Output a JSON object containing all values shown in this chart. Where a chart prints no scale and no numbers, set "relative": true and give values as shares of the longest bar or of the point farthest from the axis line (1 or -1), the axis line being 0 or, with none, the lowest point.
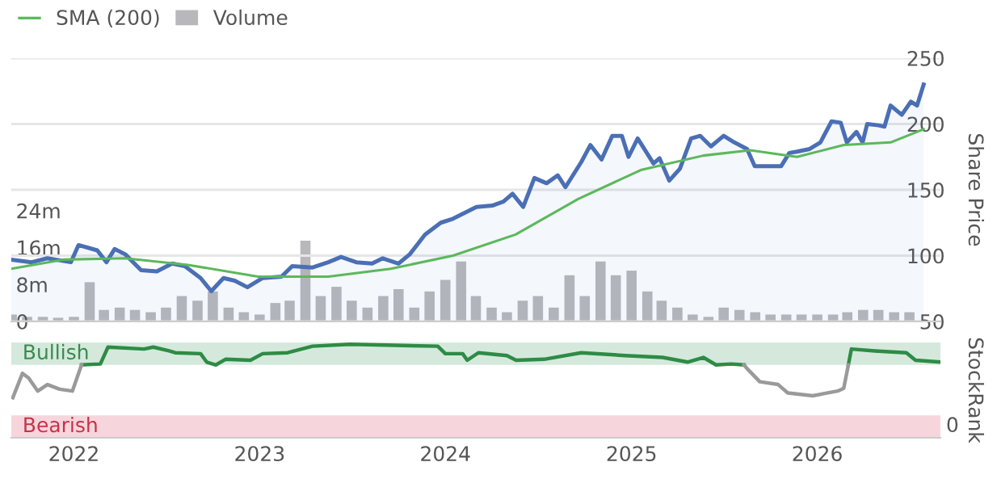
{
  "chart_data": [
    {
      "type": "line",
      "xlim": [
        "2021-08-31",
        "2026-08-31"
      ],
      "tick_labels": "y",
      "ylim": [
        50,
        250
      ],
      "yticks": [
        50,
        100,
        150,
        200,
        250
      ],
      "ylabel": "Share Price",
      "y2lim": [
        0,
        57
      ],
      "y2ticks": [
        0,
        {
          "value": 8,
          "label": "8m"
        },
        {
          "value": 16,
          "label": "16m"
        },
        {
          "value": 24,
          "label": "24m"
        }
      ],
      "grid": "y",
      "legend": "top left",
      "series": [
        {
          "type": "area",
          "color": "#4a6fb5",
          "x": [
            "2021-08-31",
            "2021-10-10",
            "2021-11-10",
            "2021-12-26",
            "2022-01-10",
            "2022-02-16",
            "2022-03-06",
            "2022-03-22",
            "2022-04-12",
            "2022-05-13",
            "2022-06-13",
            "2022-07-13",
            "2022-08-07",
            "2022-09-07",
            "2022-09-28",
            "2022-10-22",
            "2022-11-13",
            "2022-12-08",
            "2023-01-07",
            "2023-02-13",
            "2023-03-06",
            "2023-04-15",
            "2023-05-16",
            "2023-06-10",
            "2023-07-10",
            "2023-08-10",
            "2023-08-31",
            "2023-10-01",
            "2023-10-23",
            "2023-11-22",
            "2023-12-23",
            "2024-01-16",
            "2024-02-16",
            "2024-03-02",
            "2024-04-02",
            "2024-04-24",
            "2024-05-12",
            "2024-06-02",
            "2024-06-24",
            "2024-07-18",
            "2024-08-09",
            "2024-08-24",
            "2024-09-24",
            "2024-10-12",
            "2024-11-03",
            "2024-11-24",
            "2024-12-13",
            "2024-12-26",
            "2025-01-13",
            "2025-02-13",
            "2025-02-25",
            "2025-03-16",
            "2025-04-06",
            "2025-04-28",
            "2025-05-16",
            "2025-06-06",
            "2025-07-01",
            "2025-07-22",
            "2025-08-16",
            "2025-08-31",
            "2025-09-28",
            "2025-10-22",
            "2025-11-07",
            "2025-11-22",
            "2025-12-17",
            "2026-01-07",
            "2026-01-29",
            "2026-02-16",
            "2026-02-28",
            "2026-03-19",
            "2026-03-31",
            "2026-04-09",
            "2026-05-01",
            "2026-05-13",
            "2026-05-25",
            "2026-06-16",
            "2026-07-04",
            "2026-07-16",
            "2026-07-29"
          ],
          "values": [
            97,
            95,
            98,
            95,
            108,
            104,
            95,
            105,
            101,
            89,
            88,
            94,
            92,
            83,
            73,
            83,
            81,
            76,
            83,
            84,
            92,
            91,
            95,
            99,
            95,
            94,
            98,
            94,
            101,
            116,
            125,
            128,
            134,
            137,
            138,
            141,
            147,
            137,
            159,
            155,
            161,
            152,
            171,
            184,
            173,
            191,
            191,
            175,
            189,
            170,
            174,
            157,
            166,
            189,
            191,
            183,
            191,
            186,
            181,
            168,
            168,
            168,
            178,
            179,
            181,
            186,
            202,
            201,
            186,
            194,
            186,
            200,
            199,
            198,
            214,
            207,
            217,
            214,
            230
          ]
        },
        {
          "name": "SMA (200)",
          "type": "line",
          "color": "#5cb85c",
          "x": [
            "2021-08-31",
            "2021-12-11",
            "2022-04-12",
            "2022-08-13",
            "2022-12-29",
            "2023-05-16",
            "2023-09-16",
            "2024-01-16",
            "2024-05-18",
            "2024-09-18",
            "2025-01-19",
            "2025-05-22",
            "2025-08-22",
            "2025-11-22",
            "2026-02-22",
            "2026-05-25",
            "2026-07-29"
          ],
          "values": [
            90,
            97,
            98,
            93,
            84,
            84,
            90,
            100,
            116,
            143,
            165,
            176,
            180,
            175,
            184,
            186,
            196
          ]
        },
        {
          "name": "Volume",
          "type": "bar",
          "axis": "y2",
          "color": "#b8b8bc",
          "x": [
            "2021-09",
            "2021-10",
            "2021-11",
            "2021-12",
            "2022-01",
            "2022-02",
            "2022-03",
            "2022-04",
            "2022-05",
            "2022-06",
            "2022-07",
            "2022-08",
            "2022-09",
            "2022-10",
            "2022-11",
            "2022-12",
            "2023-01",
            "2023-02",
            "2023-03",
            "2023-04",
            "2023-05",
            "2023-06",
            "2023-07",
            "2023-08",
            "2023-09",
            "2023-10",
            "2023-11",
            "2023-12",
            "2024-01",
            "2024-02",
            "2024-03",
            "2024-04",
            "2024-05",
            "2024-06",
            "2024-07",
            "2024-08",
            "2024-09",
            "2024-10",
            "2024-11",
            "2024-12",
            "2025-01",
            "2025-02",
            "2025-03",
            "2025-04",
            "2025-05",
            "2025-06",
            "2025-07",
            "2025-08",
            "2025-09",
            "2025-10",
            "2025-11",
            "2025-12",
            "2026-01",
            "2026-02",
            "2026-03",
            "2026-04",
            "2026-05",
            "2026-06",
            "2026-07"
          ],
          "values": [
            1.5,
            1,
            1,
            0.8,
            1,
            8.5,
            2.5,
            3,
            2.5,
            2,
            3,
            5.5,
            4.5,
            6.5,
            3,
            2,
            1.5,
            4,
            4.5,
            17.5,
            5.5,
            7.5,
            4.5,
            3,
            5.5,
            7,
            3,
            6.5,
            9,
            13,
            5.5,
            3,
            2,
            4.5,
            5.5,
            3,
            10,
            5.5,
            13,
            10,
            11,
            6.5,
            4.5,
            3,
            1.5,
            1,
            3,
            2.5,
            2,
            1.5,
            1.5,
            1.5,
            1.5,
            1.5,
            2,
            2.5,
            2.5,
            2,
            2
          ]
        }
      ]
    },
    {
      "type": "line",
      "relative": true,
      "ylabel": "StockRank",
      "xlim": [
        "2021-08-31",
        "2026-08-31"
      ],
      "xticks": [
        "2022",
        "2023",
        "2024",
        "2025",
        "2026"
      ],
      "annotations": [
        "0"
      ],
      "bands": [
        {
          "axis": "y",
          "from": 0.78,
          "to": 1.02,
          "label": "Bullish",
          "color": "#d4e9dc"
        },
        {
          "axis": "y",
          "from": 0,
          "to": 0.24,
          "label": "Bearish",
          "color": "#f6d6dc"
        }
      ],
      "x": [
        "2021-09-03",
        "2021-09-22",
        "2021-10-04",
        "2021-10-22",
        "2021-11-10",
        "2021-12-04",
        "2021-12-29",
        "2022-01-16",
        "2022-02-22",
        "2022-03-09",
        "2022-05-19",
        "2022-06-06",
        "2022-07-07",
        "2022-07-19",
        "2022-09-07",
        "2022-09-19",
        "2022-10-07",
        "2022-10-26",
        "2022-12-14",
        "2023-01-07",
        "2023-02-25",
        "2023-04-15",
        "2023-06-28",
        "2023-12-17",
        "2024-01-01",
        "2024-02-04",
        "2024-02-13",
        "2024-03-06",
        "2024-05-01",
        "2024-05-19",
        "2024-07-13",
        "2024-09-24",
        "2024-12-19",
        "2025-03-03",
        "2025-04-21",
        "2025-05-22",
        "2025-06-16",
        "2025-07-16",
        "2025-08-10",
        "2025-08-16",
        "2025-09-10",
        "2025-10-16",
        "2025-11-04",
        "2025-12-23",
        "2026-02-10",
        "2026-02-22",
        "2026-03-03",
        "2026-03-09",
        "2026-04-24",
        "2026-06-25",
        "2026-07-13",
        "2026-08-31"
      ],
      "series": [
        {
          "color": "#2e8b45",
          "values": [
            null,
            null,
            null,
            null,
            null,
            null,
            null,
            0.78,
            0.79,
            0.97,
            0.95,
            0.97,
            0.93,
            0.91,
            0.9,
            0.81,
            0.78,
            0.84,
            0.83,
            0.9,
            0.91,
            0.98,
            1,
            0.98,
            0.9,
            0.9,
            0.83,
            0.91,
            0.88,
            0.83,
            0.84,
            0.91,
            0.88,
            0.86,
            0.81,
            0.86,
            0.78,
            0.79,
            0.78,
            null,
            null,
            null,
            null,
            null,
            null,
            null,
            0.78,
            0.95,
            0.93,
            0.91,
            0.83,
            0.81
          ]
        },
        {
          "color": "#9a9a9a",
          "values": [
            0.43,
            0.69,
            0.64,
            0.5,
            0.57,
            0.52,
            0.5,
            0.78,
            null,
            null,
            null,
            null,
            null,
            null,
            null,
            null,
            null,
            null,
            null,
            null,
            null,
            null,
            null,
            null,
            null,
            null,
            null,
            null,
            null,
            null,
            null,
            null,
            null,
            null,
            null,
            null,
            null,
            null,
            0.78,
            0.74,
            0.6,
            0.57,
            0.48,
            0.45,
            0.5,
            0.53,
            0.78,
            null,
            null,
            null,
            null,
            null
          ]
        }
      ]
    }
  ]
}
